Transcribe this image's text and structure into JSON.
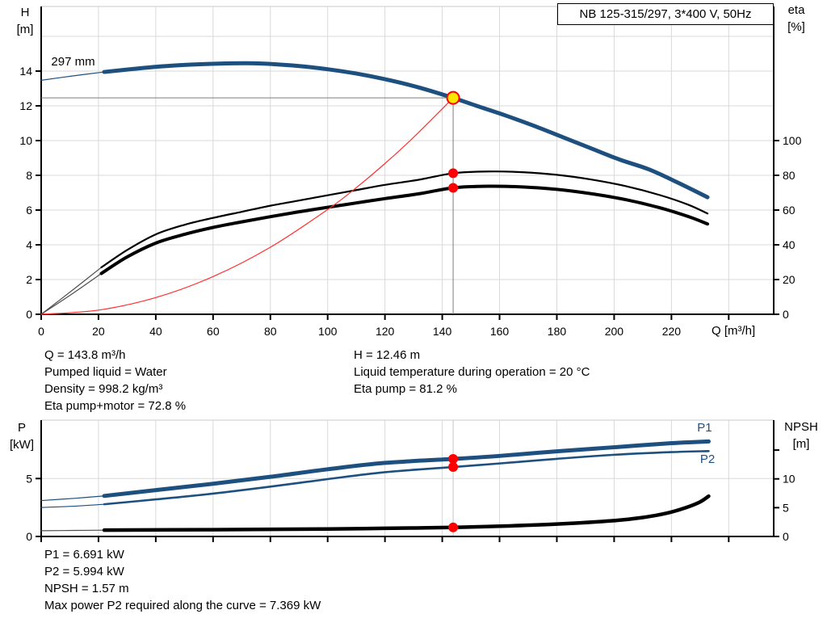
{
  "info_head": {
    "left": [
      "Q = 143.8 m³/h",
      "Pumped liquid = Water",
      "Density = 998.2 kg/m³",
      "Eta pump+motor = 72.8 %"
    ],
    "right": [
      "H = 12.46 m",
      "Liquid temperature during operation = 20 °C",
      "Eta pump = 81.2 %"
    ]
  },
  "info_power": {
    "lines": [
      "P1 = 6.691 kW",
      "P2 = 5.994 kW",
      "NPSH = 1.57 m",
      "Max power P2 required along the curve = 7.369 kW"
    ]
  },
  "colors": {
    "curve_blue": "#1e507f",
    "black": "#000000",
    "red": "#ff0000",
    "yellow": "#ffe600",
    "grid": "#d9d9d9",
    "border": "#c9c9c9",
    "marker": "#7d7d7d",
    "marker_light": "#c6c6c6",
    "lead_gray": "#4d4d4d"
  },
  "chart_data": [
    {
      "id": "head",
      "type": "line",
      "title_box": "NB 125-315/297, 3*400 V, 50Hz",
      "x_axis": {
        "label": "Q [m³/h]",
        "range": [
          0,
          255.7
        ],
        "grid": [
          20,
          40,
          60,
          80,
          100,
          120,
          140,
          160,
          180,
          200,
          220,
          240
        ],
        "ticks": [
          {
            "v": 0,
            "label": "0"
          },
          {
            "v": 20,
            "label": "20"
          },
          {
            "v": 40,
            "label": "40"
          },
          {
            "v": 60,
            "label": "60"
          },
          {
            "v": 80,
            "label": "80"
          },
          {
            "v": 100,
            "label": "100"
          },
          {
            "v": 120,
            "label": "120"
          },
          {
            "v": 140,
            "label": "140"
          },
          {
            "v": 160,
            "label": "160"
          },
          {
            "v": 180,
            "label": "180"
          },
          {
            "v": 200,
            "label": "200"
          },
          {
            "v": 220,
            "label": "220"
          },
          {
            "v": 240,
            "label": ""
          }
        ],
        "unit_label_q": 234.3
      },
      "left_axis": {
        "title": [
          "H",
          "[m]"
        ],
        "range": [
          0,
          17.72
        ],
        "grid": [
          2,
          4,
          6,
          8,
          10,
          12,
          14,
          16
        ],
        "ticks": [
          {
            "v": 0,
            "label": "0"
          },
          {
            "v": 2,
            "label": "2"
          },
          {
            "v": 4,
            "label": "4"
          },
          {
            "v": 6,
            "label": "6"
          },
          {
            "v": 8,
            "label": "8"
          },
          {
            "v": 10,
            "label": "10"
          },
          {
            "v": 12,
            "label": "12"
          },
          {
            "v": 14,
            "label": "14"
          }
        ]
      },
      "right_axis": {
        "title": [
          "eta",
          "[%]"
        ],
        "range": [
          0,
          177.2
        ],
        "ticks": [
          {
            "v": 0,
            "label": "0"
          },
          {
            "v": 20,
            "label": "20"
          },
          {
            "v": 40,
            "label": "40"
          },
          {
            "v": 60,
            "label": "60"
          },
          {
            "v": 80,
            "label": "80"
          },
          {
            "v": 100,
            "label": "100"
          }
        ]
      },
      "curves": [
        {
          "name": "head-curve-297mm",
          "color": "#1e507f",
          "width": 5,
          "axis": "left",
          "lead": [
            [
              0,
              13.47
            ],
            [
              11,
              13.72
            ],
            [
              22,
              13.95
            ]
          ],
          "points": [
            [
              22,
              13.95
            ],
            [
              32,
              14.12
            ],
            [
              42,
              14.27
            ],
            [
              52,
              14.37
            ],
            [
              62,
              14.43
            ],
            [
              72,
              14.45
            ],
            [
              82,
              14.39
            ],
            [
              92,
              14.26
            ],
            [
              102,
              14.06
            ],
            [
              112,
              13.8
            ],
            [
              122,
              13.46
            ],
            [
              132,
              13.05
            ],
            [
              143.8,
              12.46
            ],
            [
              152,
              12.0
            ],
            [
              162,
              11.45
            ],
            [
              172,
              10.85
            ],
            [
              182,
              10.2
            ],
            [
              192,
              9.55
            ],
            [
              202,
              8.9
            ],
            [
              212,
              8.35
            ],
            [
              222,
              7.6
            ],
            [
              232.6,
              6.74
            ]
          ]
        },
        {
          "name": "eta-pump-curve",
          "color": "#000000",
          "width": 2.2,
          "axis": "right",
          "lead": [
            [
              0,
              0
            ],
            [
              11,
              14
            ],
            [
              21,
              27
            ]
          ],
          "points": [
            [
              21,
              27
            ],
            [
              30,
              37
            ],
            [
              40,
              46
            ],
            [
              50,
              51.5
            ],
            [
              60,
              55.5
            ],
            [
              70,
              59
            ],
            [
              80,
              62.5
            ],
            [
              90,
              65.5
            ],
            [
              100,
              68.5
            ],
            [
              110,
              71.5
            ],
            [
              120,
              74.5
            ],
            [
              132,
              77.5
            ],
            [
              143.8,
              81.2
            ],
            [
              156,
              82.2
            ],
            [
              168,
              81.8
            ],
            [
              180,
              80.3
            ],
            [
              192,
              77.6
            ],
            [
              204,
              73.8
            ],
            [
              216,
              68.6
            ],
            [
              226,
              63
            ],
            [
              232.6,
              58
            ]
          ]
        },
        {
          "name": "eta-pump-motor-curve",
          "color": "#000000",
          "width": 4,
          "axis": "right",
          "lead": [
            [
              0,
              0
            ],
            [
              11,
              12
            ],
            [
              21,
              23.5
            ]
          ],
          "points": [
            [
              21,
              23.5
            ],
            [
              30,
              33
            ],
            [
              40,
              41
            ],
            [
              50,
              46
            ],
            [
              60,
              50
            ],
            [
              70,
              53.2
            ],
            [
              80,
              56.2
            ],
            [
              90,
              59
            ],
            [
              100,
              61.6
            ],
            [
              110,
              64.1
            ],
            [
              120,
              66.6
            ],
            [
              132,
              69.4
            ],
            [
              143.8,
              72.8
            ],
            [
              156,
              73.7
            ],
            [
              168,
              73.3
            ],
            [
              180,
              71.9
            ],
            [
              192,
              69.4
            ],
            [
              204,
              66
            ],
            [
              216,
              61.3
            ],
            [
              226,
              56.2
            ],
            [
              232.6,
              52
            ]
          ]
        },
        {
          "name": "system-curve",
          "color": "#ff3030",
          "width": 1.2,
          "axis": "left",
          "points": [
            [
              0,
              0
            ],
            [
              20,
              0.24
            ],
            [
              40,
              0.96
            ],
            [
              60,
              2.17
            ],
            [
              80,
              3.86
            ],
            [
              100,
              6.03
            ],
            [
              110,
              7.29
            ],
            [
              120,
              8.68
            ],
            [
              130,
              10.19
            ],
            [
              143.8,
              12.46
            ]
          ]
        }
      ],
      "labels": [
        {
          "text": "297 mm",
          "q": 3.5,
          "axis": "left",
          "v": 14.33,
          "color": "#000000"
        }
      ],
      "markers": {
        "color": "#7d7d7d",
        "hline": {
          "q0": 0,
          "q1": 143.8,
          "axis": "left",
          "v": 12.46
        },
        "vline": {
          "q": 143.8,
          "axis": "left",
          "v0": 0,
          "v1": 12.46
        },
        "op_point": {
          "q": 143.8,
          "axis": "left",
          "v": 12.46,
          "fill": "#ffe600",
          "stroke": "#ff0000",
          "r": 7.5
        },
        "dot_color": "#ff0000",
        "dots": [
          {
            "q": 143.8,
            "axis": "right",
            "v": 81.2
          },
          {
            "q": 143.8,
            "axis": "right",
            "v": 72.8
          }
        ]
      }
    },
    {
      "id": "power",
      "type": "line",
      "title_box": "",
      "x_axis": {
        "label": "",
        "range": [
          0,
          255.7
        ],
        "grid": [
          20,
          40,
          60,
          80,
          100,
          120,
          140,
          160,
          180,
          200,
          220,
          240
        ],
        "ticks": [
          {
            "v": 0,
            "label": ""
          },
          {
            "v": 20,
            "label": ""
          },
          {
            "v": 40,
            "label": ""
          },
          {
            "v": 60,
            "label": ""
          },
          {
            "v": 80,
            "label": ""
          },
          {
            "v": 100,
            "label": ""
          },
          {
            "v": 120,
            "label": ""
          },
          {
            "v": 140,
            "label": ""
          },
          {
            "v": 160,
            "label": ""
          },
          {
            "v": 180,
            "label": ""
          },
          {
            "v": 200,
            "label": ""
          },
          {
            "v": 220,
            "label": ""
          },
          {
            "v": 240,
            "label": ""
          }
        ],
        "unit_label_q": null
      },
      "left_axis": {
        "title": [
          "P",
          "[kW]"
        ],
        "range": [
          0,
          10.04
        ],
        "grid": [
          5
        ],
        "ticks": [
          {
            "v": 0,
            "label": "0"
          },
          {
            "v": 5,
            "label": "5"
          }
        ]
      },
      "right_axis": {
        "title": [
          "NPSH",
          "[m]"
        ],
        "range": [
          0,
          20.2
        ],
        "ticks": [
          {
            "v": 0,
            "label": "0"
          },
          {
            "v": 5,
            "label": "5"
          },
          {
            "v": 10,
            "label": "10"
          },
          {
            "v": 15,
            "label": ""
          }
        ]
      },
      "curves": [
        {
          "name": "p1-curve",
          "color": "#1e507f",
          "width": 5,
          "axis": "left",
          "lead": [
            [
              0,
              3.1
            ],
            [
              12,
              3.3
            ],
            [
              22,
              3.5
            ]
          ],
          "points": [
            [
              22,
              3.5
            ],
            [
              40,
              4.0
            ],
            [
              60,
              4.55
            ],
            [
              80,
              5.15
            ],
            [
              100,
              5.8
            ],
            [
              120,
              6.35
            ],
            [
              143.8,
              6.69
            ],
            [
              160,
              6.95
            ],
            [
              180,
              7.35
            ],
            [
              200,
              7.7
            ],
            [
              220,
              8.05
            ],
            [
              233,
              8.2
            ]
          ]
        },
        {
          "name": "p2-curve",
          "color": "#1e507f",
          "width": 2.6,
          "axis": "left",
          "lead": [
            [
              0,
              2.5
            ],
            [
              12,
              2.62
            ],
            [
              22,
              2.78
            ]
          ],
          "points": [
            [
              22,
              2.78
            ],
            [
              40,
              3.2
            ],
            [
              60,
              3.7
            ],
            [
              80,
              4.3
            ],
            [
              100,
              4.95
            ],
            [
              120,
              5.55
            ],
            [
              143.8,
              5.99
            ],
            [
              160,
              6.3
            ],
            [
              180,
              6.7
            ],
            [
              200,
              7.05
            ],
            [
              220,
              7.28
            ],
            [
              233,
              7.37
            ]
          ]
        },
        {
          "name": "npsh-curve",
          "color": "#000000",
          "width": 4.5,
          "axis": "right",
          "lead": [
            [
              0,
              1.0
            ],
            [
              12,
              1.05
            ],
            [
              22,
              1.1
            ]
          ],
          "points": [
            [
              22,
              1.1
            ],
            [
              60,
              1.18
            ],
            [
              100,
              1.3
            ],
            [
              120,
              1.42
            ],
            [
              143.8,
              1.57
            ],
            [
              160,
              1.78
            ],
            [
              180,
              2.15
            ],
            [
              200,
              2.75
            ],
            [
              210,
              3.3
            ],
            [
              218,
              4.0
            ],
            [
              225,
              5.0
            ],
            [
              230,
              6.0
            ],
            [
              233,
              7.0
            ]
          ]
        }
      ],
      "labels": [
        {
          "text": "P1",
          "q": 229,
          "axis": "left",
          "v": 9.05,
          "color": "#1e507f"
        },
        {
          "text": "P2",
          "q": 230,
          "axis": "left",
          "v": 6.33,
          "color": "#1e507f"
        }
      ],
      "markers": {
        "color": "#c6c6c6",
        "hline": null,
        "vline": {
          "q": 143.8,
          "full": true
        },
        "op_point": null,
        "dot_color": "#ff0000",
        "dots": [
          {
            "q": 143.8,
            "axis": "left",
            "v": 6.691
          },
          {
            "q": 143.8,
            "axis": "left",
            "v": 5.994
          },
          {
            "q": 143.8,
            "axis": "right",
            "v": 1.57
          }
        ]
      }
    }
  ]
}
